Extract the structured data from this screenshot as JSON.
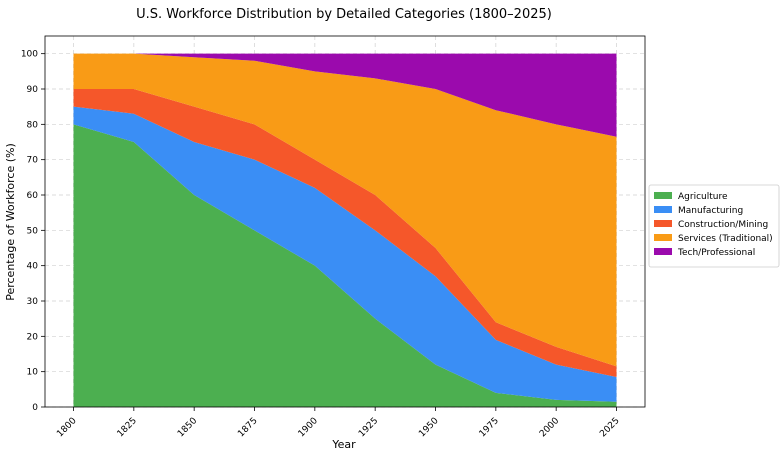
{
  "chart_data": {
    "type": "area",
    "stacked": true,
    "title": "U.S. Workforce Distribution by Detailed Categories (1800–2025)",
    "xlabel": "Year",
    "ylabel": "Percentage of Workforce (%)",
    "x": [
      1800,
      1825,
      1850,
      1875,
      1900,
      1925,
      1950,
      1975,
      2000,
      2025
    ],
    "xticks": [
      "1800",
      "1825",
      "1850",
      "1875",
      "1900",
      "1925",
      "1950",
      "1975",
      "2000",
      "2025"
    ],
    "yticks": [
      "0",
      "10",
      "20",
      "30",
      "40",
      "50",
      "60",
      "70",
      "80",
      "90",
      "100"
    ],
    "ylim": [
      0,
      105
    ],
    "grid": true,
    "legend_position": "right",
    "series": [
      {
        "name": "Agriculture",
        "color": "#4caf50",
        "values": [
          80,
          75,
          60,
          50,
          40,
          25,
          12,
          4,
          2,
          1.5
        ]
      },
      {
        "name": "Manufacturing",
        "color": "#3a8ef5",
        "values": [
          5,
          8,
          15,
          20,
          22,
          25,
          25,
          15,
          10,
          7
        ]
      },
      {
        "name": "Construction/Mining",
        "color": "#f5572a",
        "values": [
          5,
          7,
          10,
          10,
          8,
          10,
          8,
          5,
          5,
          3
        ]
      },
      {
        "name": "Services (Traditional)",
        "color": "#f99b16",
        "values": [
          10,
          10,
          14,
          18,
          25,
          33,
          45,
          60,
          63,
          65
        ]
      },
      {
        "name": "Tech/Professional",
        "color": "#9b0aad",
        "values": [
          0,
          0,
          1,
          2,
          5,
          7,
          10,
          16,
          20,
          23.5
        ]
      }
    ]
  }
}
